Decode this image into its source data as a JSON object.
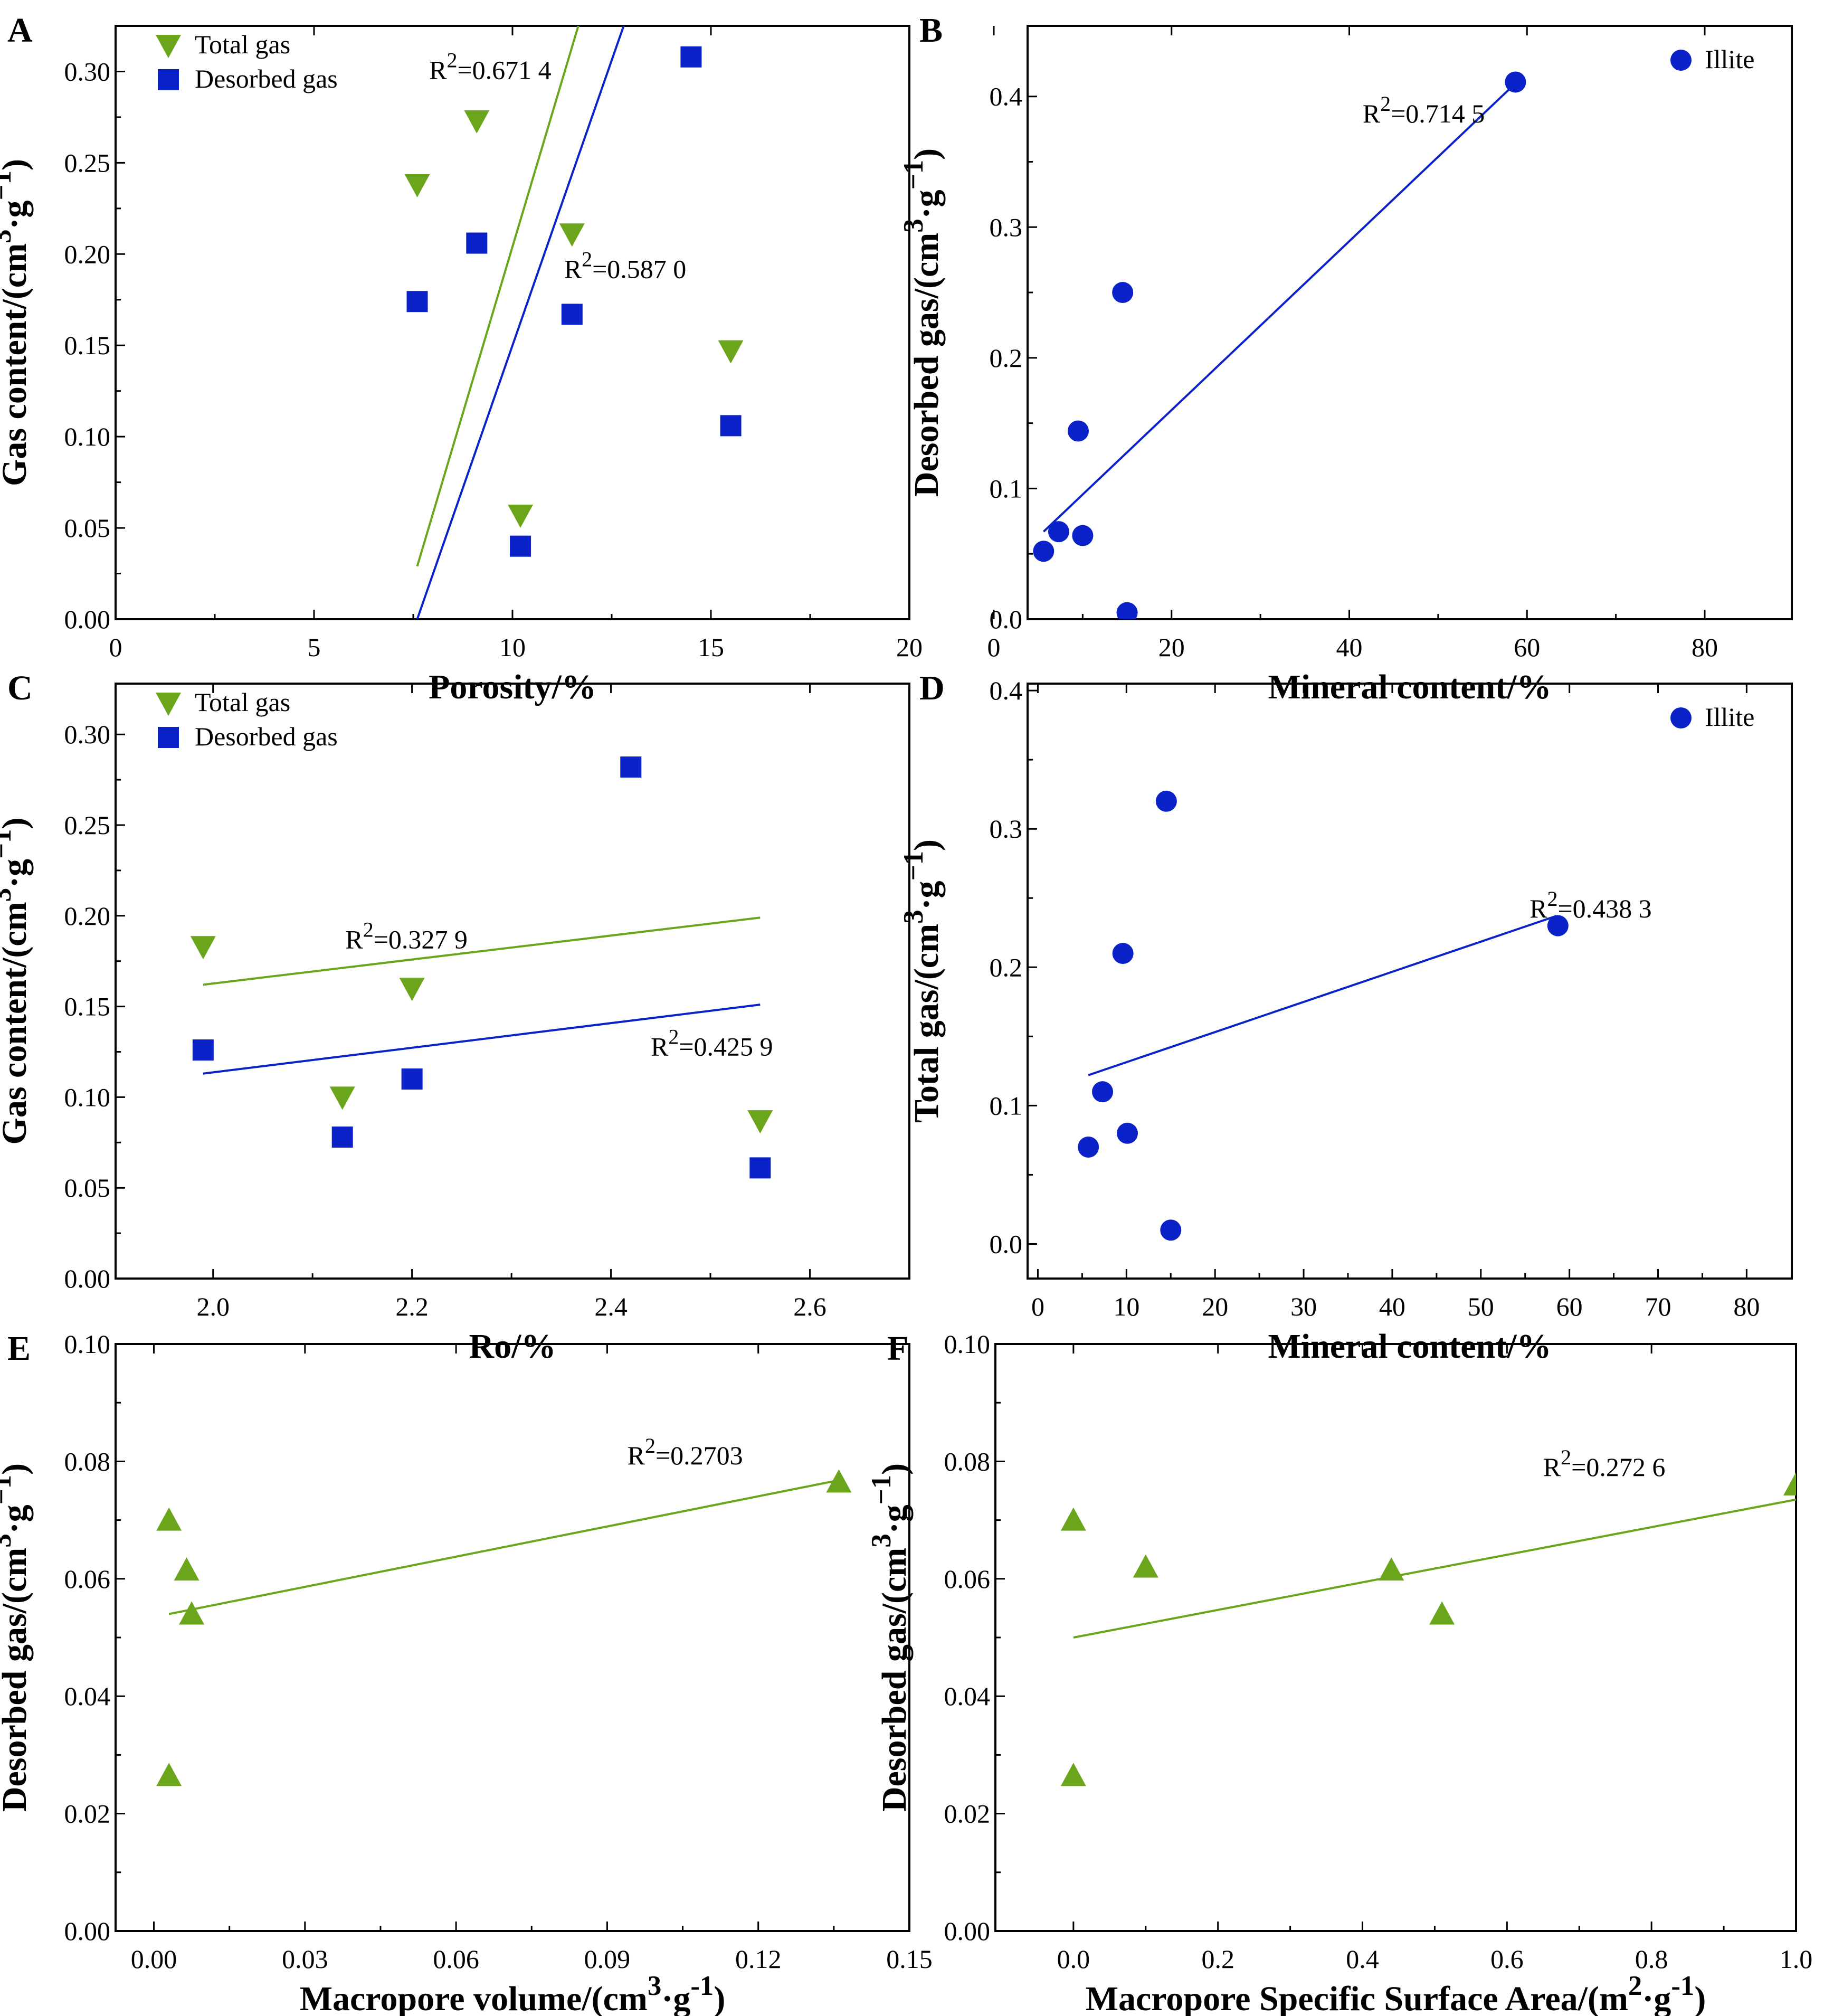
{
  "colors": {
    "green": "#6aa51c",
    "blue": "#0a22c8",
    "axis": "#000000"
  },
  "chart_data": [
    {
      "panel": "A",
      "type": "scatter",
      "xlabel": [
        {
          "t": "Porosity/%"
        }
      ],
      "ylabel": [
        {
          "t": "Gas content/(cm"
        },
        {
          "t": "3",
          "sup": true
        },
        {
          "t": "·g"
        },
        {
          "t": "−1",
          "sup": true
        },
        {
          "t": ")"
        }
      ],
      "xlim": [
        0,
        20
      ],
      "ylim": [
        0,
        0.325
      ],
      "xticks": [
        0,
        5,
        10,
        15,
        20
      ],
      "xticklabels": [
        "0",
        "5",
        "10",
        "15",
        "20"
      ],
      "yticks": [
        0,
        0.05,
        0.1,
        0.15,
        0.2,
        0.25,
        0.3
      ],
      "yticklabels": [
        "0.00",
        "0.05",
        "0.10",
        "0.15",
        "0.20",
        "0.25",
        "0.30"
      ],
      "legend": {
        "placement": "top-left",
        "entries": [
          {
            "label": "Total gas",
            "marker": "tri-down",
            "color": "green"
          },
          {
            "label": "Desorbed gas",
            "marker": "square",
            "color": "blue"
          }
        ]
      },
      "series": [
        {
          "name": "Total gas",
          "marker": "tri-down",
          "color": "green",
          "x": [
            7.6,
            9.1,
            10.2,
            11.5,
            15.5
          ],
          "y": [
            0.238,
            0.273,
            0.057,
            0.211,
            0.147
          ],
          "fit": [
            [
              7.6,
              0.029
            ],
            [
              11.7,
              0.328
            ]
          ]
        },
        {
          "name": "Desorbed gas",
          "marker": "square",
          "color": "blue",
          "x": [
            7.6,
            9.1,
            10.2,
            11.5,
            14.5,
            15.5
          ],
          "y": [
            0.174,
            0.206,
            0.04,
            0.167,
            0.308,
            0.106
          ],
          "fit": [
            [
              7.6,
              0.0
            ],
            [
              12.85,
              0.328
            ]
          ]
        }
      ],
      "annotations": [
        {
          "base": "R",
          "sup": "2",
          "rest": "=0.671 4",
          "at": [
            7.9,
            0.296
          ]
        },
        {
          "base": "R",
          "sup": "2",
          "rest": "=0.587 0",
          "at": [
            11.3,
            0.187
          ]
        }
      ]
    },
    {
      "panel": "B",
      "type": "scatter",
      "xlabel": [
        {
          "t": "Mineral content/%"
        }
      ],
      "ylabel": [
        {
          "t": "Desorbed gas/(cm"
        },
        {
          "t": "3",
          "sup": true
        },
        {
          "t": "·g"
        },
        {
          "t": "−1",
          "sup": true
        },
        {
          "t": ")"
        }
      ],
      "xlim": [
        3.8,
        89.8
      ],
      "ylim": [
        0,
        0.454
      ],
      "xticks": [
        0,
        20,
        40,
        60,
        80
      ],
      "xticklabels": [
        "0",
        "20",
        "40",
        "60",
        "80"
      ],
      "yticks": [
        0,
        0.1,
        0.2,
        0.3,
        0.4
      ],
      "yticklabels": [
        "0.0",
        "0.1",
        "0.2",
        "0.3",
        "0.4"
      ],
      "legend": {
        "placement": "top-right",
        "entries": [
          {
            "label": "Illite",
            "marker": "circle",
            "color": "blue"
          }
        ]
      },
      "series": [
        {
          "name": "Illite",
          "marker": "circle",
          "color": "blue",
          "x": [
            5.6,
            7.3,
            9.5,
            10.0,
            14.5,
            15.0,
            58.7
          ],
          "y": [
            0.052,
            0.067,
            0.144,
            0.064,
            0.25,
            0.005,
            0.411
          ],
          "fit": [
            [
              5.6,
              0.067
            ],
            [
              58.7,
              0.41
            ]
          ]
        }
      ],
      "annotations": [
        {
          "base": "R",
          "sup": "2",
          "rest": "=0.714 5",
          "at": [
            41.5,
            0.38
          ]
        }
      ]
    },
    {
      "panel": "C",
      "type": "scatter",
      "xlabel": [
        {
          "t": "Ro/%"
        }
      ],
      "ylabel": [
        {
          "t": "Gas content/(cm"
        },
        {
          "t": "3",
          "sup": true
        },
        {
          "t": "·g"
        },
        {
          "t": "−1",
          "sup": true
        },
        {
          "t": ")"
        }
      ],
      "xlim": [
        1.902,
        2.7
      ],
      "ylim": [
        0,
        0.328
      ],
      "xticks": [
        2.0,
        2.2,
        2.4,
        2.6
      ],
      "xticklabels": [
        "2.0",
        "2.2",
        "2.4",
        "2.6"
      ],
      "yticks": [
        0,
        0.05,
        0.1,
        0.15,
        0.2,
        0.25,
        0.3
      ],
      "yticklabels": [
        "0.00",
        "0.05",
        "0.10",
        "0.15",
        "0.20",
        "0.25",
        "0.30"
      ],
      "legend": {
        "placement": "top-left",
        "entries": [
          {
            "label": "Total gas",
            "marker": "tri-down",
            "color": "green"
          },
          {
            "label": "Desorbed gas",
            "marker": "square",
            "color": "blue"
          }
        ]
      },
      "series": [
        {
          "name": "Total gas",
          "marker": "tri-down",
          "color": "green",
          "x": [
            1.99,
            2.13,
            2.2,
            2.55
          ],
          "y": [
            0.183,
            0.1,
            0.16,
            0.087
          ],
          "fit": [
            [
              1.99,
              0.162
            ],
            [
              2.55,
              0.199
            ]
          ]
        },
        {
          "name": "Desorbed gas",
          "marker": "square",
          "color": "blue",
          "x": [
            1.99,
            2.13,
            2.2,
            2.42,
            2.55
          ],
          "y": [
            0.126,
            0.078,
            0.11,
            0.282,
            0.061
          ],
          "fit": [
            [
              1.99,
              0.113
            ],
            [
              2.55,
              0.151
            ]
          ]
        }
      ],
      "annotations": [
        {
          "base": "R",
          "sup": "2",
          "rest": "=0.327 9",
          "at": [
            2.133,
            0.182
          ]
        },
        {
          "base": "R",
          "sup": "2",
          "rest": "=0.425 9",
          "at": [
            2.44,
            0.123
          ]
        }
      ]
    },
    {
      "panel": "D",
      "type": "scatter",
      "xlabel": [
        {
          "t": "Mineral content/%"
        }
      ],
      "ylabel": [
        {
          "t": "Total gas/(cm"
        },
        {
          "t": "3",
          "sup": true
        },
        {
          "t": "·g"
        },
        {
          "t": "−1",
          "sup": true
        },
        {
          "t": ")"
        }
      ],
      "xlim": [
        -1.16,
        85.1
      ],
      "ylim": [
        -0.025,
        0.405
      ],
      "xticks": [
        0,
        10,
        20,
        30,
        40,
        50,
        60,
        70,
        80
      ],
      "xticklabels": [
        "0",
        "10",
        "20",
        "30",
        "40",
        "50",
        "60",
        "70",
        "80"
      ],
      "yticks": [
        0,
        0.1,
        0.2,
        0.3,
        0.4
      ],
      "yticklabels": [
        "0.0",
        "0.1",
        "0.2",
        "0.3",
        "0.4"
      ],
      "legend": {
        "placement": "top-right",
        "entries": [
          {
            "label": "Illite",
            "marker": "circle",
            "color": "blue"
          }
        ]
      },
      "series": [
        {
          "name": "Illite",
          "marker": "circle",
          "color": "blue",
          "x": [
            5.7,
            7.3,
            9.6,
            10.1,
            14.5,
            15.0,
            58.7
          ],
          "y": [
            0.07,
            0.11,
            0.21,
            0.08,
            0.32,
            0.01,
            0.23
          ],
          "fit": [
            [
              5.7,
              0.122
            ],
            [
              58.5,
              0.237
            ]
          ]
        }
      ],
      "annotations": [
        {
          "base": "R",
          "sup": "2",
          "rest": "=0.438 3",
          "at": [
            55.5,
            0.236
          ]
        }
      ]
    },
    {
      "panel": "E",
      "type": "scatter",
      "xlabel": [
        {
          "t": "Macropore volume/(cm"
        },
        {
          "t": "3",
          "sup": true
        },
        {
          "t": "·g"
        },
        {
          "t": "-1",
          "sup": true
        },
        {
          "t": ")"
        }
      ],
      "ylabel": [
        {
          "t": "Desorbed gas/(cm"
        },
        {
          "t": "3",
          "sup": true
        },
        {
          "t": "·g"
        },
        {
          "t": "−1",
          "sup": true
        },
        {
          "t": ")"
        }
      ],
      "xlim": [
        -0.0076,
        0.15
      ],
      "ylim": [
        0,
        0.1
      ],
      "xticks": [
        0,
        0.03,
        0.06,
        0.09,
        0.12,
        0.15
      ],
      "xticklabels": [
        "0.00",
        "0.03",
        "0.06",
        "0.09",
        "0.12",
        "0.15"
      ],
      "yticks": [
        0,
        0.02,
        0.04,
        0.06,
        0.08,
        0.1
      ],
      "yticklabels": [
        "0.00",
        "0.02",
        "0.04",
        "0.06",
        "0.08",
        "0.10"
      ],
      "legend": null,
      "series": [
        {
          "name": "Desorbed gas",
          "marker": "tri-up",
          "color": "green",
          "x": [
            0.003,
            0.003,
            0.0065,
            0.0075,
            0.136
          ],
          "y": [
            0.07,
            0.0265,
            0.0615,
            0.054,
            0.0765
          ],
          "fit": [
            [
              0.003,
              0.054
            ],
            [
              0.136,
              0.0768
            ]
          ]
        }
      ],
      "annotations": [
        {
          "base": "R",
          "sup": "2",
          "rest": "=0.2703",
          "at": [
            0.094,
            0.0795
          ]
        }
      ]
    },
    {
      "panel": "F",
      "type": "scatter",
      "xlabel": [
        {
          "t": "Macropore Specific Surface Area/("
        },
        {
          "t": "m"
        },
        {
          "t": "2",
          "sup": true
        },
        {
          "t": "·g"
        },
        {
          "t": "-1",
          "sup": true
        },
        {
          "t": ")"
        }
      ],
      "ylabel": [
        {
          "t": "Desorbed gas/(cm"
        },
        {
          "t": "3",
          "sup": true
        },
        {
          "t": "·g"
        },
        {
          "t": "−1",
          "sup": true
        },
        {
          "t": ")"
        }
      ],
      "xlim": [
        -0.108,
        1.0
      ],
      "ylim": [
        0,
        0.1
      ],
      "xticks": [
        0,
        0.2,
        0.4,
        0.6,
        0.8,
        1.0
      ],
      "xticklabels": [
        "0.0",
        "0.2",
        "0.4",
        "0.6",
        "0.8",
        "1.0"
      ],
      "yticks": [
        0,
        0.02,
        0.04,
        0.06,
        0.08,
        0.1
      ],
      "yticklabels": [
        "0.00",
        "0.02",
        "0.04",
        "0.06",
        "0.08",
        "0.10"
      ],
      "legend": null,
      "series": [
        {
          "name": "Desorbed gas",
          "marker": "tri-up",
          "color": "green",
          "x": [
            0.0,
            0.0,
            0.1,
            0.44,
            0.51,
            1.0
          ],
          "y": [
            0.07,
            0.0265,
            0.062,
            0.0615,
            0.054,
            0.076
          ],
          "fit": [
            [
              0.0,
              0.05
            ],
            [
              1.0,
              0.0735
            ]
          ]
        }
      ],
      "annotations": [
        {
          "base": "R",
          "sup": "2",
          "rest": "=0.272 6",
          "at": [
            0.65,
            0.0775
          ]
        }
      ]
    }
  ]
}
